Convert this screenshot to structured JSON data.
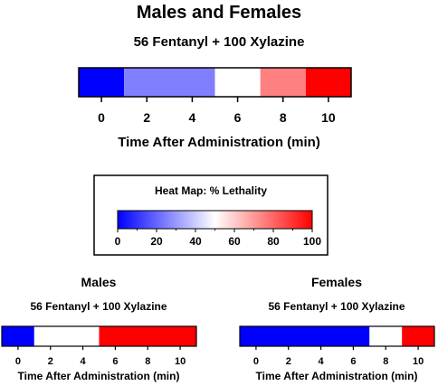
{
  "legend": {
    "title": "Heat Map: % Lethality",
    "range": [
      0,
      100
    ],
    "colors": {
      "low": "#0000ff",
      "mid": "#ffffff",
      "high": "#ff0000"
    },
    "ticks": [
      0,
      20,
      40,
      60,
      80,
      100
    ]
  },
  "chart_data": [
    {
      "type": "heatmap",
      "title": "Males and Females",
      "subtitle": "56 Fentanyl + 100 Xylazine",
      "xlabel": "Time After Administration (min)",
      "xlim": [
        -1,
        11
      ],
      "xticks": [
        0,
        2,
        4,
        6,
        8,
        10
      ],
      "segments": [
        {
          "start": -1,
          "end": 1,
          "lethality": 0
        },
        {
          "start": 1,
          "end": 5,
          "lethality": 25
        },
        {
          "start": 5,
          "end": 7,
          "lethality": 50
        },
        {
          "start": 7,
          "end": 9,
          "lethality": 75
        },
        {
          "start": 9,
          "end": 11,
          "lethality": 100
        }
      ]
    },
    {
      "type": "heatmap",
      "title": "Males",
      "subtitle": "56 Fentanyl + 100 Xylazine",
      "xlabel": "Time After Administration (min)",
      "xlim": [
        -1,
        11
      ],
      "xticks": [
        0,
        2,
        4,
        6,
        8,
        10
      ],
      "segments": [
        {
          "start": -1,
          "end": 1,
          "lethality": 0
        },
        {
          "start": 1,
          "end": 5,
          "lethality": 50
        },
        {
          "start": 5,
          "end": 11,
          "lethality": 100
        }
      ]
    },
    {
      "type": "heatmap",
      "title": "Females",
      "subtitle": "56 Fentanyl + 100 Xylazine",
      "xlabel": "Time After Administration (min)",
      "xlim": [
        -1,
        11
      ],
      "xticks": [
        0,
        2,
        4,
        6,
        8,
        10
      ],
      "segments": [
        {
          "start": -1,
          "end": 7,
          "lethality": 0
        },
        {
          "start": 7,
          "end": 9,
          "lethality": 50
        },
        {
          "start": 9,
          "end": 11,
          "lethality": 100
        }
      ]
    }
  ]
}
